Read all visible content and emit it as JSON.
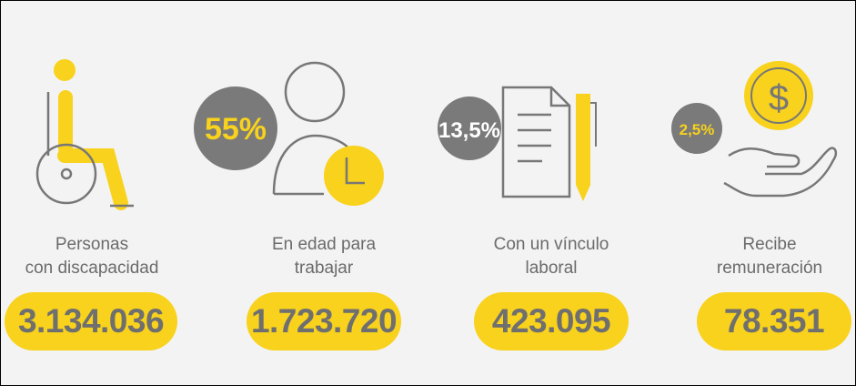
{
  "items": [
    {
      "label": [
        "Personas",
        "con discapacidad"
      ],
      "value": "3.134.036"
    },
    {
      "percent": "55%",
      "label": [
        "En edad para",
        "trabajar"
      ],
      "value": "1.723.720"
    },
    {
      "percent": "13,5%",
      "label": [
        "Con un vínculo",
        "laboral"
      ],
      "value": "423.095"
    },
    {
      "percent": "2,5%",
      "coin_symbol": "$",
      "label": [
        "Recibe",
        "remuneración"
      ],
      "value": "78.351"
    }
  ]
}
